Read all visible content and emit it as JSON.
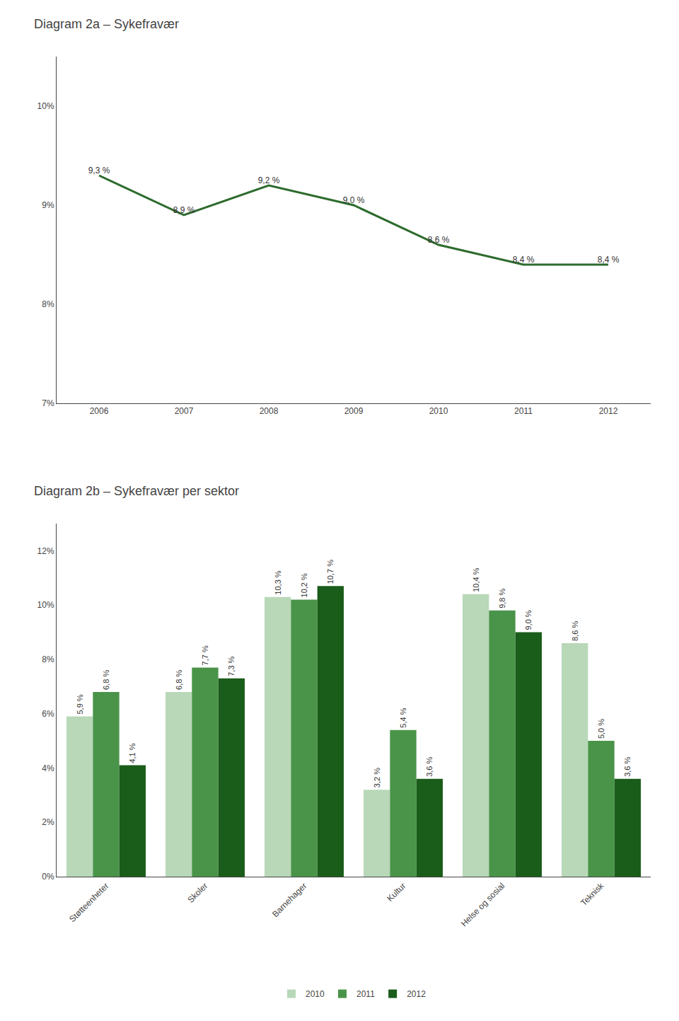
{
  "chart_data": [
    {
      "type": "line",
      "title": "Diagram 2a – Sykefravær",
      "categories": [
        "2006",
        "2007",
        "2008",
        "2009",
        "2010",
        "2011",
        "2012"
      ],
      "values": [
        9.3,
        8.9,
        9.2,
        9.0,
        8.6,
        8.4,
        8.4
      ],
      "value_labels": [
        "9,3 %",
        "8,9 %",
        "9,2 %",
        "9,0 %",
        "8,6 %",
        "8,4 %",
        "8,4 %"
      ],
      "color": "#2d6b2d",
      "ylim": [
        7.0,
        10.5
      ],
      "yticks": [
        {
          "value": 7.0,
          "label": "7%"
        },
        {
          "value": 8.0,
          "label": "8%"
        },
        {
          "value": 9.0,
          "label": "9%"
        },
        {
          "value": 10.0,
          "label": "10%"
        }
      ],
      "data_labels": true,
      "grid": false
    },
    {
      "type": "bar",
      "title": "Diagram 2b – Sykefravær per sektor",
      "categories": [
        "Støtteenheter",
        "Skoler",
        "Barnehager",
        "Kultur",
        "Helse og sosial",
        "Teknisk"
      ],
      "series": [
        {
          "name": "2010",
          "color": "#b8d8b8",
          "values": [
            5.9,
            6.8,
            10.3,
            3.2,
            10.4,
            8.6
          ],
          "value_labels": [
            "5,9 %",
            "6,8 %",
            "10,3 %",
            "3,2 %",
            "10,4 %",
            "8,6 %"
          ]
        },
        {
          "name": "2011",
          "color": "#4a944a",
          "values": [
            6.8,
            7.7,
            10.2,
            5.4,
            9.8,
            5.0
          ],
          "value_labels": [
            "6,8 %",
            "7,7 %",
            "10,2 %",
            "5,4 %",
            "9,8 %",
            "5,0 %"
          ]
        },
        {
          "name": "2012",
          "color": "#1a5c1a",
          "values": [
            4.1,
            7.3,
            10.7,
            3.6,
            9.0,
            3.6
          ],
          "value_labels": [
            "4,1 %",
            "7,3 %",
            "10,7 %",
            "3,6 %",
            "9,0 %",
            "3,6 %"
          ]
        }
      ],
      "ylim": [
        0,
        13
      ],
      "yticks": [
        {
          "value": 0,
          "label": "0%"
        },
        {
          "value": 2,
          "label": "2%"
        },
        {
          "value": 4,
          "label": "4%"
        },
        {
          "value": 6,
          "label": "6%"
        },
        {
          "value": 8,
          "label": "8%"
        },
        {
          "value": 10,
          "label": "10%"
        },
        {
          "value": 12,
          "label": "12%"
        }
      ],
      "data_labels": true,
      "legend": "bottom",
      "grid": false
    }
  ]
}
